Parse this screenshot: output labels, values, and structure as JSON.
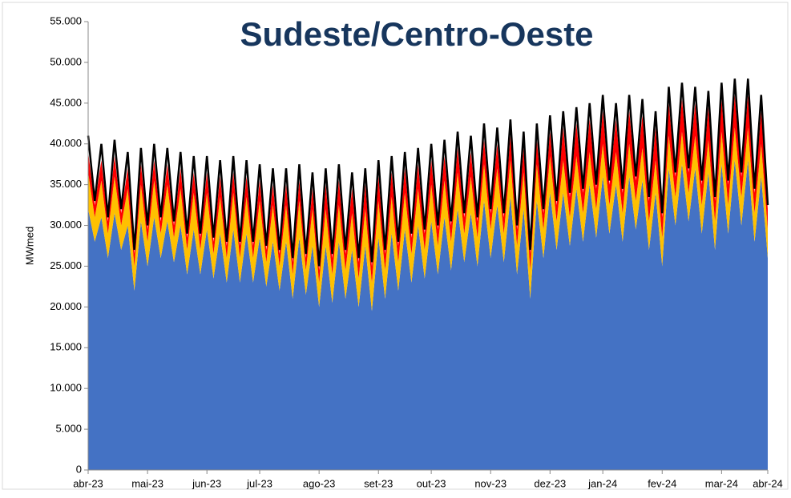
{
  "chart_data": {
    "type": "stacked-area-line",
    "title": "Sudeste/Centro-Oeste",
    "y_label": "MWmed",
    "categories": [
      "abr-23",
      null,
      null,
      null,
      null,
      null,
      null,
      null,
      null,
      "mai-23",
      null,
      null,
      null,
      null,
      null,
      null,
      null,
      null,
      "jun-23",
      null,
      null,
      null,
      null,
      null,
      null,
      null,
      "jul-23",
      null,
      null,
      null,
      null,
      null,
      null,
      null,
      null,
      "ago-23",
      null,
      null,
      null,
      null,
      null,
      null,
      null,
      null,
      "set-23",
      null,
      null,
      null,
      null,
      null,
      null,
      null,
      "out-23",
      null,
      null,
      null,
      null,
      null,
      null,
      null,
      null,
      "nov-23",
      null,
      null,
      null,
      null,
      null,
      null,
      null,
      null,
      "dez-23",
      null,
      null,
      null,
      null,
      null,
      null,
      null,
      "jan-24",
      null,
      null,
      null,
      null,
      null,
      null,
      null,
      null,
      "fev-24",
      null,
      null,
      null,
      null,
      null,
      null,
      null,
      null,
      "mar-24",
      null,
      null,
      null,
      null,
      null,
      null,
      "abr-24"
    ],
    "series": [
      {
        "color": "#4472c4",
        "kind": "area",
        "values": [
          32000,
          28000,
          31000,
          26000,
          31500,
          27000,
          30000,
          22000,
          30500,
          25000,
          31000,
          26000,
          30500,
          25500,
          30000,
          24000,
          29500,
          24000,
          29500,
          23500,
          29000,
          23000,
          29500,
          23000,
          29000,
          23000,
          28500,
          22500,
          28000,
          22000,
          28000,
          21000,
          28500,
          21500,
          27500,
          20000,
          27500,
          20500,
          28000,
          21000,
          27000,
          20000,
          27500,
          19500,
          28500,
          21000,
          29000,
          22000,
          29500,
          23000,
          30000,
          23500,
          30500,
          24000,
          31000,
          24500,
          32000,
          25500,
          31500,
          25000,
          33000,
          26000,
          32500,
          25500,
          33500,
          24000,
          32000,
          21000,
          33000,
          26000,
          34000,
          27000,
          34000,
          27500,
          34500,
          28000,
          35000,
          28500,
          36000,
          29000,
          35000,
          28000,
          36000,
          29500,
          35500,
          27000,
          34000,
          25000,
          37000,
          30000,
          37500,
          30500,
          37000,
          29000,
          36500,
          27000,
          37500,
          29000,
          38000,
          30000,
          38000,
          28000,
          36000,
          26000
        ]
      },
      {
        "color": "#ffc000",
        "kind": "area",
        "values": [
          4500,
          3000,
          4500,
          3000,
          4500,
          3000,
          4500,
          3000,
          4500,
          3000,
          4500,
          3000,
          4500,
          3000,
          4500,
          3000,
          4500,
          3000,
          4500,
          3000,
          4500,
          3000,
          4500,
          3000,
          4500,
          3000,
          4500,
          3000,
          4500,
          3000,
          4500,
          3000,
          4500,
          3000,
          4500,
          3000,
          4500,
          3500,
          4500,
          3500,
          4500,
          3500,
          4500,
          3500,
          4500,
          3500,
          4500,
          3500,
          4500,
          3500,
          4500,
          3500,
          4500,
          3500,
          4500,
          3500,
          4500,
          3500,
          4500,
          3500,
          4500,
          3500,
          4500,
          3500,
          4500,
          3500,
          4500,
          3500,
          4500,
          3500,
          4500,
          3500,
          4000,
          3500,
          4000,
          3500,
          4000,
          3500,
          4000,
          3500,
          4000,
          3500,
          4000,
          3500,
          4000,
          3500,
          4000,
          3500,
          4000,
          3500,
          4000,
          3500,
          4000,
          3500,
          4000,
          3500,
          4000,
          3500,
          4000,
          3500,
          4000,
          3500,
          4000,
          3500
        ]
      },
      {
        "color": "#ff0000",
        "kind": "area",
        "values": [
          2500,
          1500,
          2500,
          1500,
          2500,
          1500,
          2500,
          1500,
          2500,
          1500,
          2500,
          1500,
          2500,
          1500,
          2500,
          1500,
          2500,
          1500,
          2500,
          1500,
          2500,
          1500,
          2500,
          1500,
          2500,
          1500,
          2500,
          1500,
          2500,
          1500,
          2500,
          1500,
          2500,
          1500,
          2500,
          1500,
          3000,
          2000,
          3000,
          2000,
          3000,
          2000,
          3000,
          2000,
          3000,
          2000,
          3000,
          2000,
          3000,
          2000,
          3000,
          2000,
          3000,
          2000,
          3000,
          2000,
          3000,
          2000,
          3000,
          2000,
          3000,
          2000,
          3000,
          2000,
          3000,
          2000,
          3000,
          2000,
          3000,
          2000,
          3000,
          2000,
          4000,
          2500,
          4000,
          2500,
          4000,
          2500,
          4000,
          2500,
          4000,
          2500,
          4000,
          2500,
          4000,
          2500,
          4000,
          2500,
          4000,
          2500,
          4000,
          2500,
          4000,
          2500,
          4000,
          2500,
          4000,
          2500,
          4000,
          2500,
          4000,
          2500,
          4000,
          2500
        ]
      },
      {
        "color": "#000000",
        "kind": "line",
        "values": [
          41000,
          33000,
          40000,
          31000,
          40500,
          32000,
          39000,
          27000,
          39500,
          30000,
          40000,
          31000,
          39500,
          30500,
          39000,
          29000,
          38500,
          29000,
          38500,
          28500,
          38000,
          28000,
          38500,
          28000,
          38000,
          28000,
          37500,
          27500,
          37000,
          27000,
          37000,
          26000,
          37500,
          26500,
          36500,
          25000,
          37000,
          26500,
          37500,
          27000,
          36500,
          26000,
          37000,
          25500,
          38000,
          27000,
          38500,
          28000,
          39000,
          29000,
          39500,
          29500,
          40000,
          30000,
          40500,
          30500,
          41500,
          31500,
          41000,
          31000,
          42500,
          32000,
          42000,
          31500,
          43000,
          30000,
          41500,
          27000,
          42500,
          32000,
          43500,
          33000,
          44000,
          34000,
          44500,
          34500,
          45000,
          35000,
          46000,
          35500,
          45000,
          34500,
          46000,
          36000,
          45500,
          33500,
          44000,
          31500,
          47000,
          36500,
          47500,
          37000,
          47000,
          35500,
          46500,
          33500,
          47500,
          35500,
          48000,
          36500,
          48000,
          34500,
          46000,
          32500
        ]
      }
    ],
    "ylim": [
      0,
      55000
    ],
    "yticks": [
      0,
      {
        "value": 5000,
        "label": "5.000"
      },
      {
        "value": 10000,
        "label": "10.000"
      },
      {
        "value": 15000,
        "label": "15.000"
      },
      {
        "value": 20000,
        "label": "20.000"
      },
      {
        "value": 25000,
        "label": "25.000"
      },
      {
        "value": 30000,
        "label": "30.000"
      },
      {
        "value": 35000,
        "label": "35.000"
      },
      {
        "value": 40000,
        "label": "40.000"
      },
      {
        "value": 45000,
        "label": "45.000"
      },
      {
        "value": 50000,
        "label": "50.000"
      },
      {
        "value": 55000,
        "label": "55.000"
      }
    ],
    "grid": false
  }
}
